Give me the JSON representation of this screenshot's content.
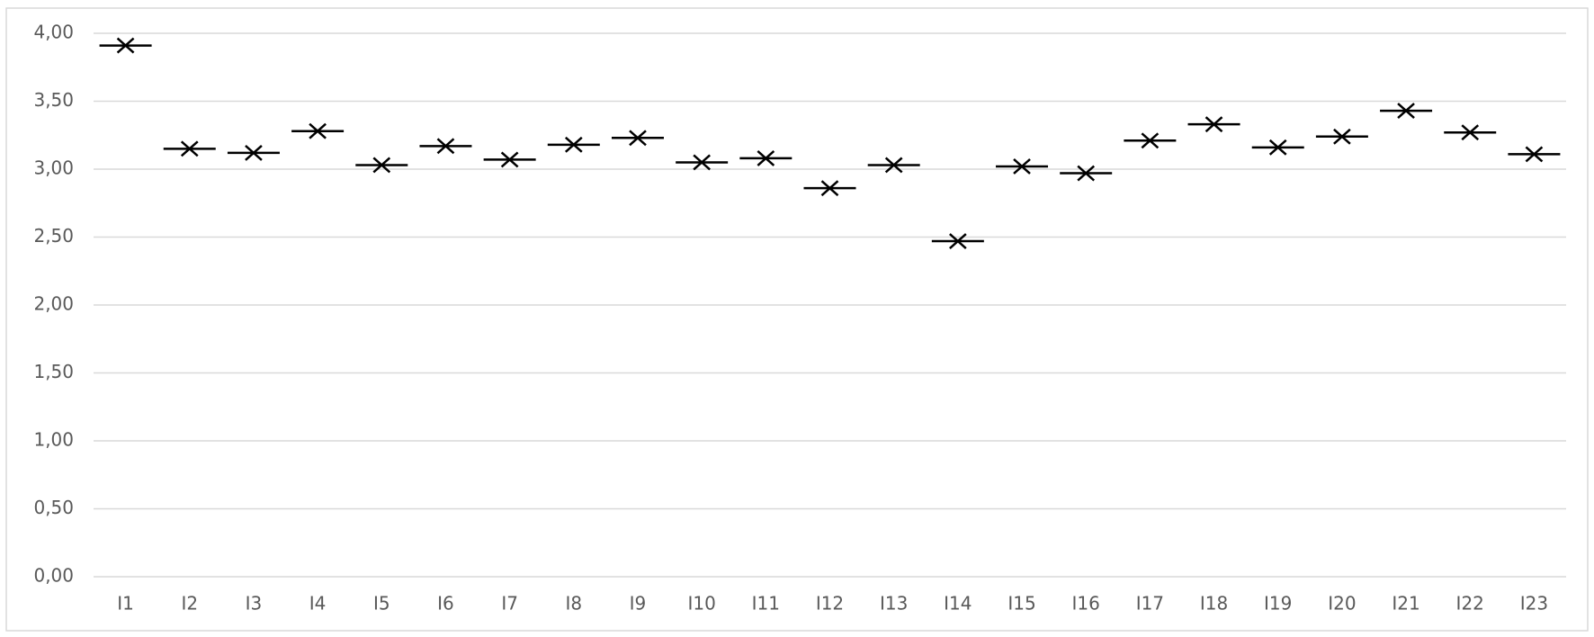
{
  "chart_data": {
    "type": "marker",
    "categories": [
      "I1",
      "I2",
      "I3",
      "I4",
      "I5",
      "I6",
      "I7",
      "I8",
      "I9",
      "I10",
      "I11",
      "I12",
      "I13",
      "I14",
      "I15",
      "I16",
      "I17",
      "I18",
      "I19",
      "I20",
      "I21",
      "I22",
      "I23"
    ],
    "values": [
      3.91,
      3.15,
      3.12,
      3.28,
      3.03,
      3.17,
      3.07,
      3.18,
      3.23,
      3.05,
      3.08,
      2.86,
      3.03,
      2.47,
      3.02,
      2.97,
      3.21,
      3.33,
      3.16,
      3.24,
      3.43,
      3.27,
      3.11
    ],
    "color": "#000000",
    "ylim": [
      0,
      4
    ],
    "yticks": [
      {
        "value": 0,
        "label": "0,00"
      },
      {
        "value": 0.5,
        "label": "0,50"
      },
      {
        "value": 1,
        "label": "1,00"
      },
      {
        "value": 1.5,
        "label": "1,50"
      },
      {
        "value": 2,
        "label": "2,00"
      },
      {
        "value": 2.5,
        "label": "2,50"
      },
      {
        "value": 3,
        "label": "3,00"
      },
      {
        "value": 3.5,
        "label": "3,50"
      },
      {
        "value": 4,
        "label": "4,00"
      }
    ],
    "grid": true
  }
}
